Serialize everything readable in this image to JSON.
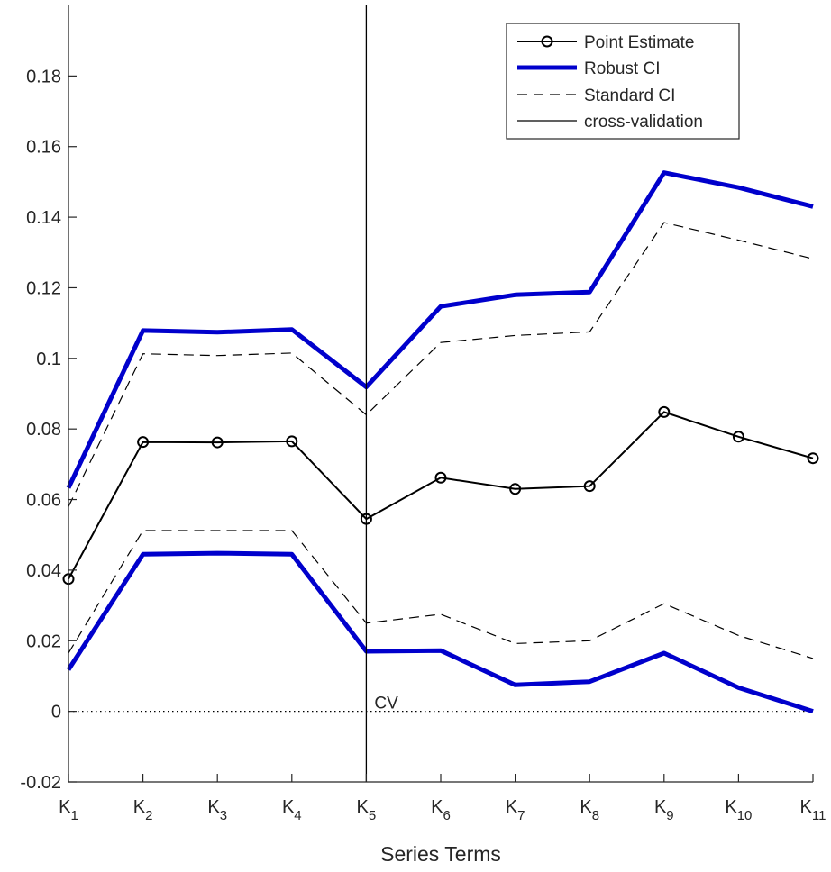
{
  "chart_data": {
    "type": "line",
    "title": "",
    "xlabel": "Series Terms",
    "ylabel": "",
    "categories": [
      {
        "base": "K",
        "sub": "1"
      },
      {
        "base": "K",
        "sub": "2"
      },
      {
        "base": "K",
        "sub": "3"
      },
      {
        "base": "K",
        "sub": "4"
      },
      {
        "base": "K",
        "sub": "5"
      },
      {
        "base": "K",
        "sub": "6"
      },
      {
        "base": "K",
        "sub": "7"
      },
      {
        "base": "K",
        "sub": "8"
      },
      {
        "base": "K",
        "sub": "9"
      },
      {
        "base": "K",
        "sub": "10"
      },
      {
        "base": "K",
        "sub": "11"
      }
    ],
    "ylim": [
      -0.02,
      0.2
    ],
    "yticks": [
      -0.02,
      0,
      0.02,
      0.04,
      0.06,
      0.08,
      0.1,
      0.12,
      0.14,
      0.16,
      0.18
    ],
    "ytick_labels": [
      "-0.02",
      "0",
      "0.02",
      "0.04",
      "0.06",
      "0.08",
      "0.1",
      "0.12",
      "0.14",
      "0.16",
      "0.18"
    ],
    "series": [
      {
        "name": "Point Estimate",
        "style": "line-circle",
        "color": "#000000",
        "values": [
          0.0375,
          0.0763,
          0.0762,
          0.0765,
          0.0545,
          0.0662,
          0.063,
          0.0638,
          0.0848,
          0.0778,
          0.0717
        ]
      },
      {
        "name": "Robust CI",
        "style": "thick",
        "color": "#0000cc",
        "upper": [
          0.0633,
          0.1079,
          0.1074,
          0.1082,
          0.0919,
          0.1147,
          0.118,
          0.1188,
          0.1526,
          0.1484,
          0.143
        ],
        "lower": [
          0.0118,
          0.0445,
          0.0448,
          0.0445,
          0.017,
          0.0172,
          0.0075,
          0.0084,
          0.0165,
          0.0067,
          0.0
        ]
      },
      {
        "name": "Standard CI",
        "style": "dashed",
        "color": "#000000",
        "upper": [
          0.058,
          0.1013,
          0.1008,
          0.1015,
          0.084,
          0.1045,
          0.1065,
          0.1075,
          0.1385,
          0.1335,
          0.1282
        ],
        "lower": [
          0.0165,
          0.0512,
          0.0512,
          0.0512,
          0.025,
          0.0275,
          0.0192,
          0.02,
          0.0305,
          0.0215,
          0.015
        ]
      },
      {
        "name": "cross-validation",
        "style": "vline",
        "color": "#000000",
        "x_index": 4
      }
    ],
    "reference_line": {
      "y": 0,
      "style": "dotted"
    },
    "annotation": {
      "text": "CV",
      "x_index": 4,
      "y": 0
    },
    "legend": "top-right",
    "grid": false
  }
}
